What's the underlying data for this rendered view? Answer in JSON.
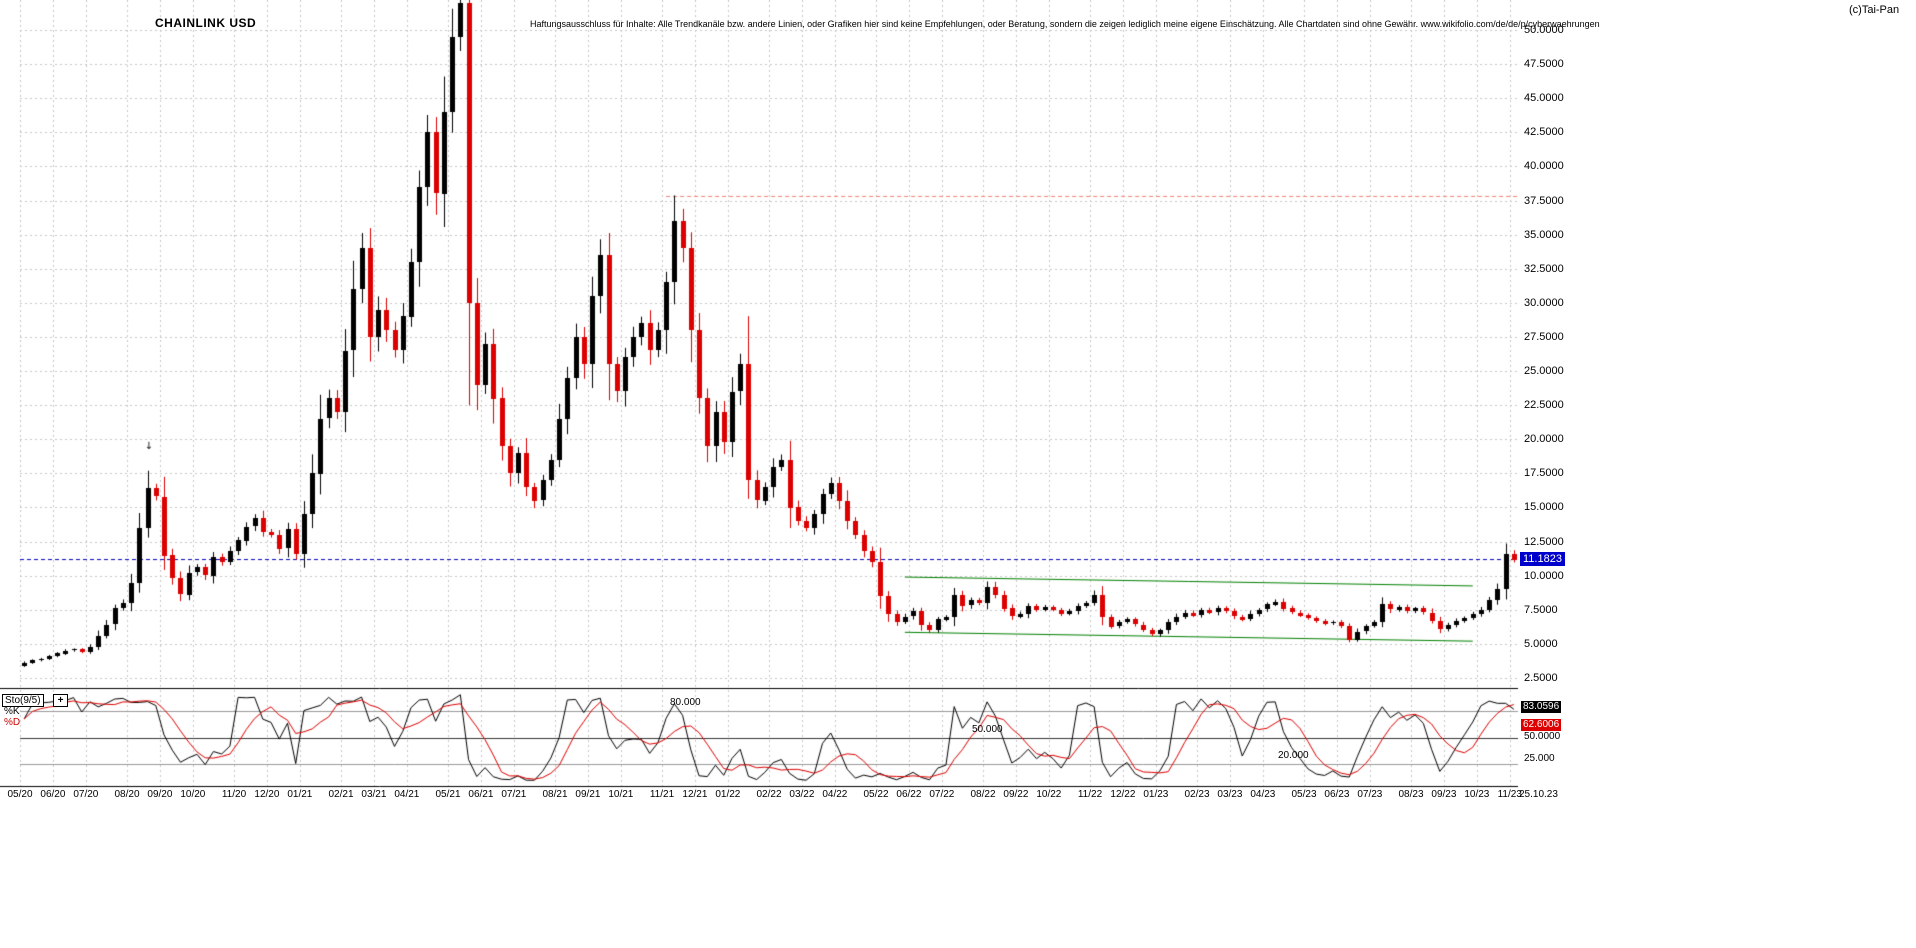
{
  "header": {
    "title": "CHAINLINK USD",
    "disclaimer": "Haftungsausschluss für Inhalte: Alle Trendkanäle bzw. andere Linien, oder Grafiken hier sind keine Empfehlungen, oder Beratung, sondern die zeigen lediglich meine eigene Einschätzung. Alle Chartdaten sind ohne Gewähr. www.wikifolio.com/de/de/p/cyberwaehrungen",
    "copyright": "(c)Tai-Pan"
  },
  "axes": {
    "price_ticks": [
      "50.0000",
      "47.5000",
      "45.0000",
      "42.5000",
      "40.0000",
      "37.5000",
      "35.0000",
      "32.5000",
      "30.0000",
      "27.5000",
      "25.0000",
      "22.5000",
      "20.0000",
      "17.5000",
      "15.0000",
      "12.5000",
      "10.0000",
      "7.5000",
      "5.0000",
      "2.5000"
    ],
    "current_date_label": "25.10.23",
    "last_price_label": "11.1823"
  },
  "sto": {
    "name": "Sto(9/5)",
    "plus": "+",
    "k_label": "%K",
    "d_label": "%D",
    "k_value": "83.0596",
    "d_value": "62.6006",
    "ref_labels": [
      "80.000",
      "50.000",
      "20.000"
    ],
    "right_ticks": [
      "50.0000",
      "25.000"
    ]
  },
  "chart_data": {
    "type": "candlestick",
    "symbol": "CHAINLINK USD",
    "interval": "weekly",
    "title": "CHAINLINK USD",
    "ylim": [
      2.5,
      50.0
    ],
    "y_step": 2.5,
    "grid": true,
    "up_color": "#000000",
    "down_color": "#dd0000",
    "x_monthly_labels": [
      "05/20",
      "06/20",
      "07/20",
      "08/20",
      "09/20",
      "10/20",
      "11/20",
      "12/20",
      "01/21",
      "02/21",
      "03/21",
      "04/21",
      "05/21",
      "06/21",
      "07/21",
      "08/21",
      "09/21",
      "10/21",
      "11/21",
      "12/21",
      "01/22",
      "02/22",
      "03/22",
      "04/22",
      "05/22",
      "06/22",
      "07/22",
      "08/22",
      "09/22",
      "10/22",
      "11/22",
      "12/22",
      "01/23",
      "02/23",
      "03/23",
      "04/23",
      "05/23",
      "06/23",
      "07/23",
      "08/23",
      "09/23",
      "10/23",
      "11/23"
    ],
    "month_week_index": [
      0,
      4,
      8,
      13,
      17,
      21,
      26,
      30,
      34,
      39,
      43,
      47,
      52,
      56,
      60,
      65,
      69,
      73,
      78,
      82,
      86,
      91,
      95,
      99,
      104,
      108,
      112,
      117,
      121,
      125,
      130,
      134,
      138,
      143,
      147,
      151,
      156,
      160,
      164,
      169,
      173,
      177,
      181
    ],
    "first_open": 3.4,
    "weekly_closes": [
      3.6,
      3.8,
      3.9,
      4.1,
      4.3,
      4.5,
      4.6,
      4.4,
      4.8,
      5.6,
      6.4,
      7.6,
      8.0,
      9.5,
      13.5,
      16.4,
      15.8,
      11.5,
      9.8,
      8.6,
      10.2,
      10.6,
      10.0,
      11.4,
      11.0,
      11.8,
      12.6,
      13.6,
      14.2,
      13.2,
      13.0,
      12.0,
      13.4,
      11.6,
      14.5,
      17.5,
      21.5,
      23.0,
      22.0,
      26.5,
      31.0,
      34.0,
      27.5,
      29.5,
      28.0,
      26.5,
      29.0,
      33.0,
      38.5,
      42.5,
      38.0,
      44.0,
      49.5,
      52.0,
      30.0,
      24.0,
      27.0,
      23.0,
      19.5,
      17.5,
      19.0,
      16.5,
      15.5,
      17.0,
      18.5,
      21.5,
      24.5,
      27.5,
      25.5,
      30.5,
      33.5,
      25.5,
      23.5,
      26.0,
      27.5,
      28.5,
      26.5,
      28.0,
      31.5,
      36.0,
      34.0,
      28.0,
      23.0,
      19.5,
      22.0,
      19.8,
      23.5,
      25.5,
      17.0,
      15.5,
      16.5,
      18.0,
      18.5,
      15.0,
      14.0,
      13.5,
      14.5,
      16.0,
      16.8,
      15.5,
      14.0,
      13.0,
      11.8,
      11.0,
      8.5,
      7.2,
      6.6,
      7.0,
      7.4,
      6.4,
      6.0,
      6.8,
      7.0,
      8.6,
      7.8,
      8.2,
      8.0,
      9.2,
      8.6,
      7.6,
      7.0,
      7.2,
      7.8,
      7.5,
      7.7,
      7.5,
      7.2,
      7.4,
      7.8,
      8.0,
      8.6,
      7.0,
      6.3,
      6.6,
      6.8,
      6.4,
      6.0,
      5.7,
      6.0,
      6.6,
      7.0,
      7.3,
      7.1,
      7.5,
      7.3,
      7.6,
      7.4,
      7.0,
      6.8,
      7.2,
      7.5,
      7.9,
      8.1,
      7.6,
      7.3,
      7.1,
      6.9,
      6.7,
      6.5,
      6.6,
      6.3,
      5.3,
      5.9,
      6.3,
      6.6,
      7.9,
      7.5,
      7.7,
      7.4,
      7.6,
      7.3,
      6.7,
      6.1,
      6.4,
      6.7,
      6.9,
      7.2,
      7.5,
      8.2,
      9.0,
      11.6,
      11.1823
    ],
    "last_price": 11.1823,
    "overlays": {
      "current_price_line": {
        "price": 11.1823,
        "color": "#0000bb",
        "style": "dashed"
      },
      "resistance_line": {
        "price": 37.8,
        "from_week": 78,
        "color": "#f08272",
        "style": "dashed"
      },
      "channel_upper": {
        "from_week": 107,
        "from_price": 9.9,
        "to_week": 176,
        "to_price": 9.25,
        "color": "#008000"
      },
      "channel_lower": {
        "from_week": 107,
        "from_price": 5.85,
        "to_week": 176,
        "to_price": 5.2,
        "color": "#008000"
      },
      "marker": {
        "week": 15,
        "price": 19.3,
        "glyph": "↓"
      }
    },
    "indicator": {
      "type": "stochastic",
      "label": "Sto(9/5)",
      "k_period": 9,
      "d_period": 5,
      "last_k": 83.0596,
      "last_d": 62.6006,
      "ref_lines": [
        80,
        50,
        20
      ],
      "k_color": "#000000",
      "d_color": "#dd0000"
    }
  },
  "colors": {
    "background": "#ffffff",
    "grid": "#c8c8c8",
    "accent_blue": "#0000cc",
    "channel_green": "#008000",
    "down_red": "#dd0000"
  }
}
